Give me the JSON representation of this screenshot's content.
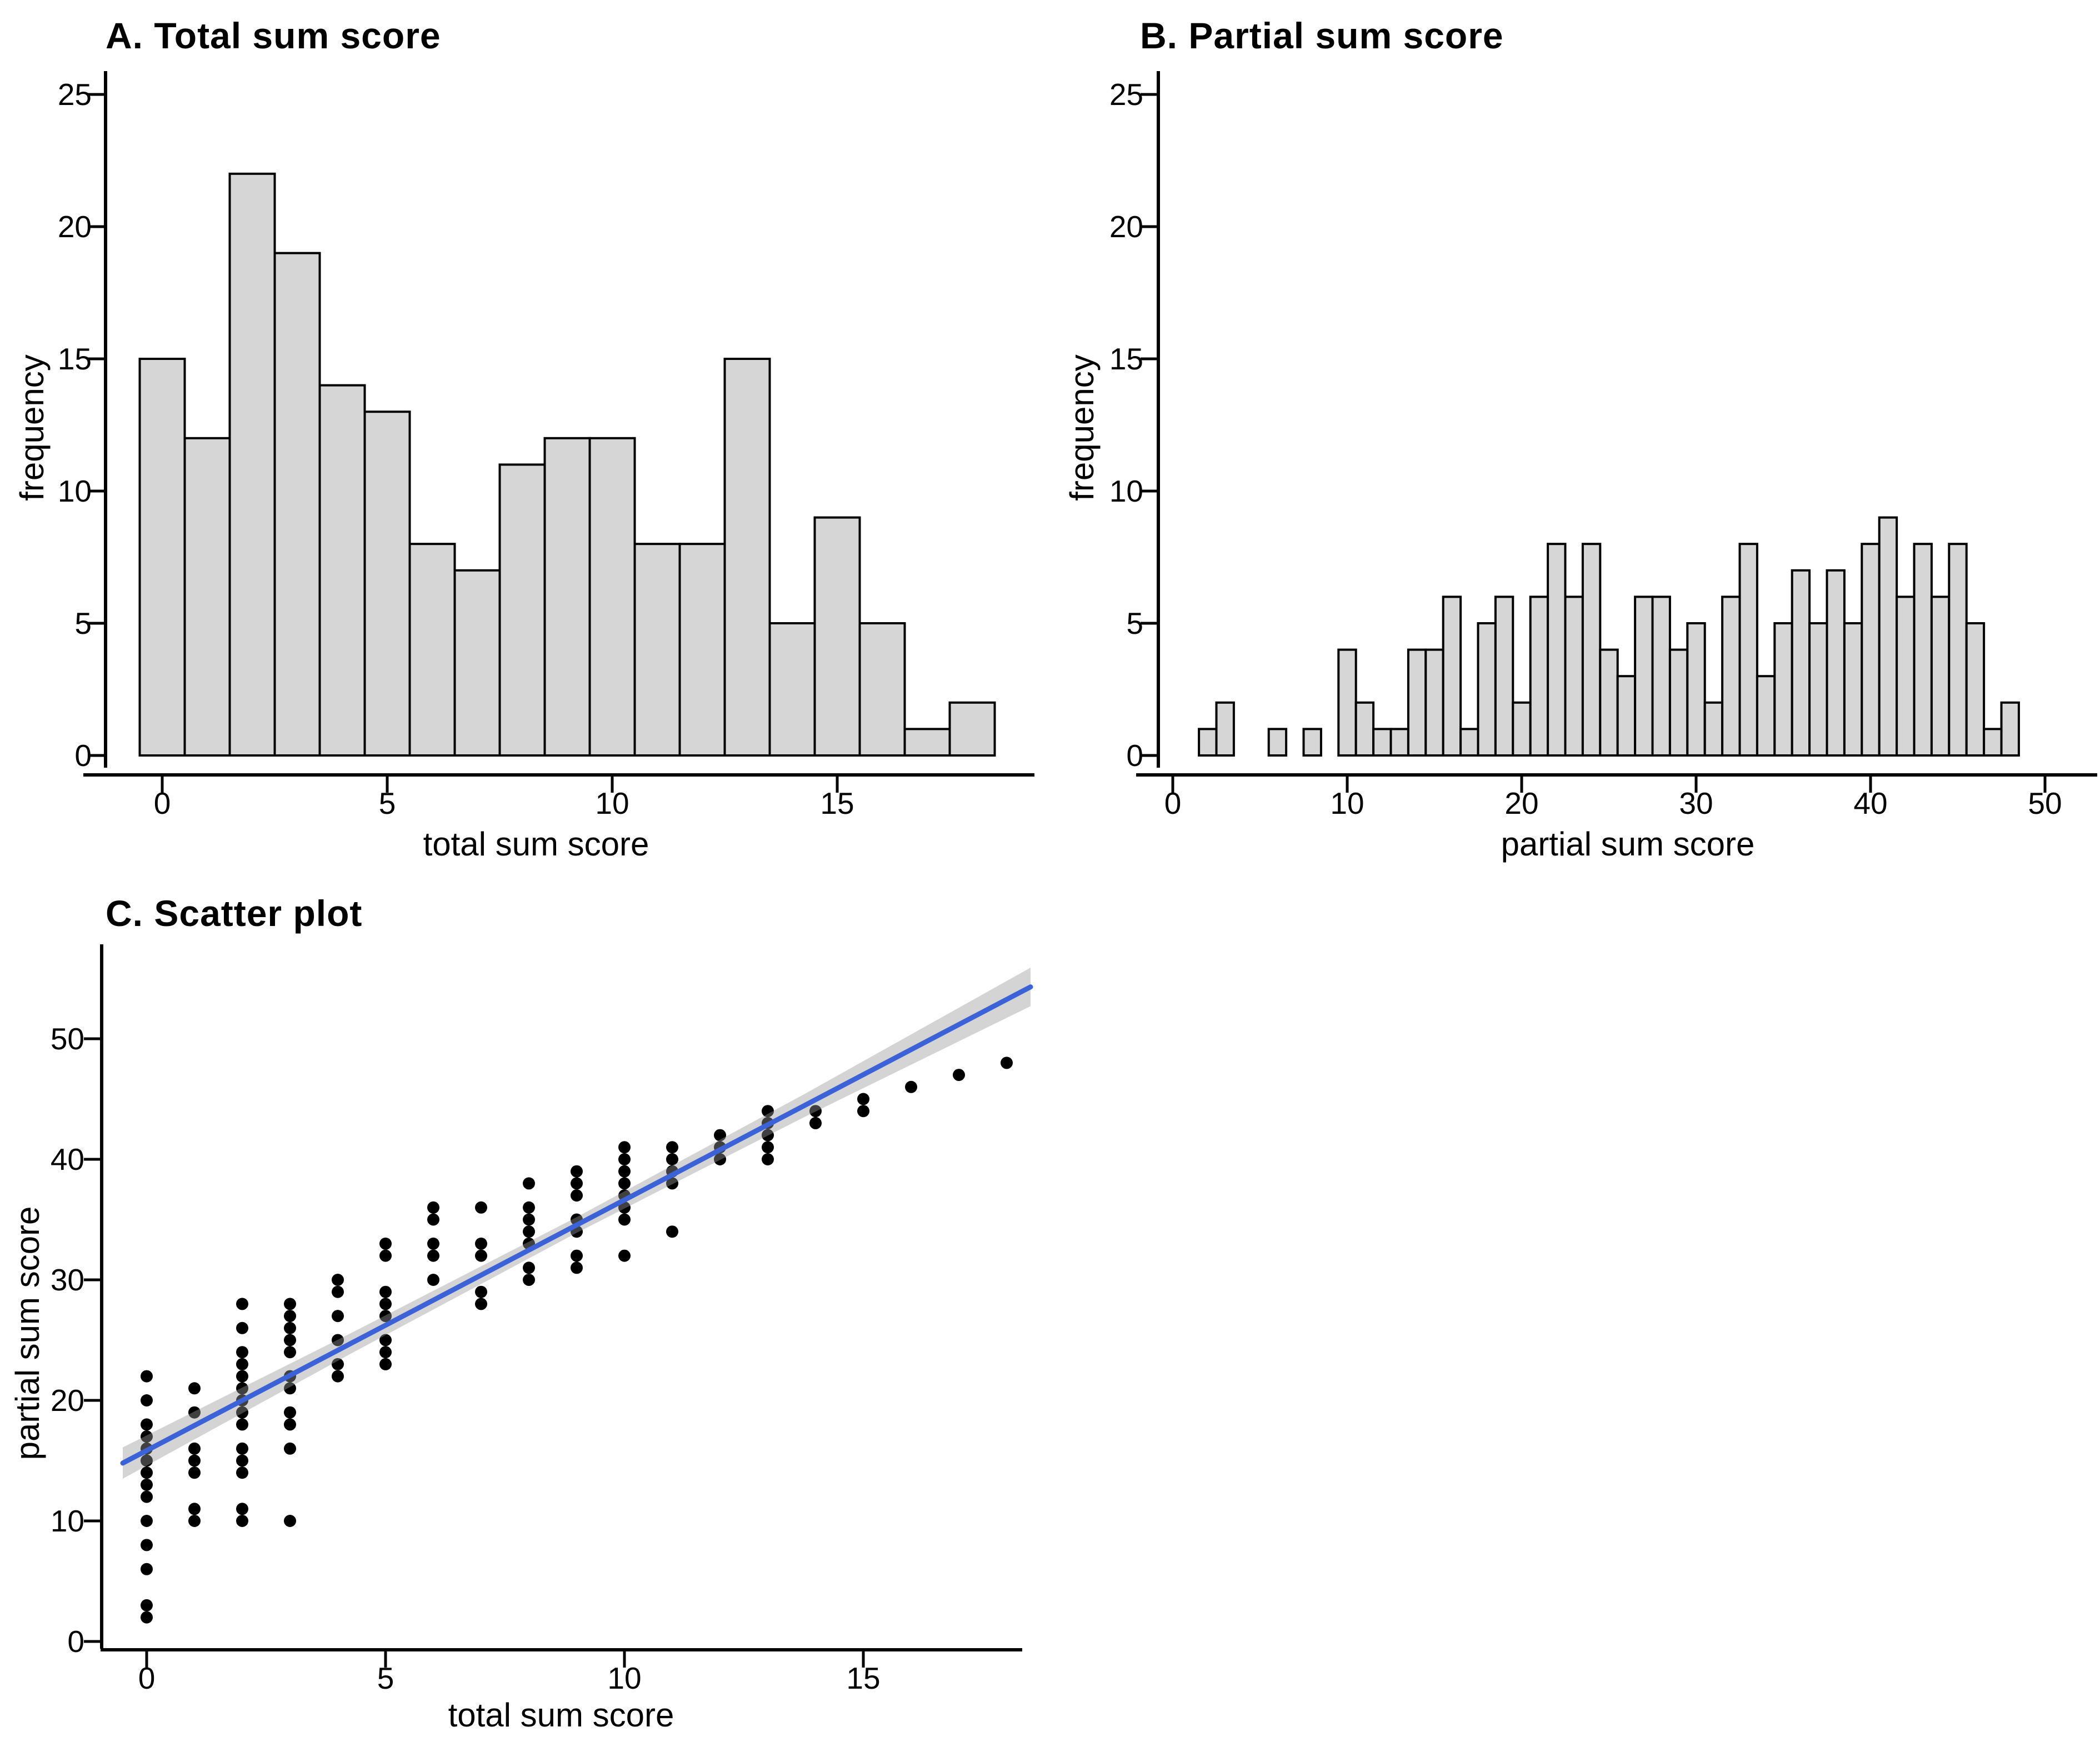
{
  "figure": {
    "background": "#ffffff",
    "text_color": "#000000"
  },
  "panels": [
    {
      "id": "A",
      "title": "A. Total sum score"
    },
    {
      "id": "B",
      "title": "B. Partial sum score"
    },
    {
      "id": "C",
      "title": "C. Scatter plot"
    }
  ],
  "chart_data": [
    {
      "type": "bar",
      "panel": "A",
      "title": "A. Total sum score",
      "xlabel": "total sum score",
      "ylabel": "frequency",
      "categories": [
        0,
        1,
        2,
        3,
        4,
        5,
        6,
        7,
        8,
        9,
        10,
        11,
        12,
        13,
        14,
        15,
        16,
        17,
        18
      ],
      "values": [
        15,
        12,
        22,
        19,
        14,
        13,
        8,
        7,
        11,
        12,
        12,
        8,
        8,
        15,
        5,
        9,
        5,
        1,
        2
      ],
      "xticks": [
        0,
        5,
        10,
        15
      ],
      "yticks": [
        0,
        5,
        10,
        15,
        20,
        25
      ],
      "xlim": [
        -0.6,
        18.6
      ],
      "ylim": [
        0,
        26
      ],
      "grid": false,
      "bar_fill": "#d6d6d6",
      "bar_stroke": "#000000"
    },
    {
      "type": "bar",
      "panel": "B",
      "title": "B. Partial sum score",
      "xlabel": "partial sum score",
      "ylabel": "frequency",
      "categories": [
        2,
        3,
        4,
        5,
        6,
        7,
        8,
        9,
        10,
        11,
        12,
        13,
        14,
        15,
        16,
        17,
        18,
        19,
        20,
        21,
        22,
        23,
        24,
        25,
        26,
        27,
        28,
        29,
        30,
        31,
        32,
        33,
        34,
        35,
        36,
        37,
        38,
        39,
        40,
        41,
        42,
        43,
        44,
        45,
        46,
        47,
        48
      ],
      "values": [
        1,
        2,
        0,
        0,
        1,
        0,
        1,
        0,
        4,
        2,
        1,
        1,
        4,
        4,
        6,
        1,
        5,
        6,
        2,
        6,
        8,
        6,
        8,
        4,
        3,
        6,
        6,
        4,
        5,
        2,
        6,
        8,
        3,
        5,
        7,
        5,
        7,
        5,
        8,
        9,
        6,
        8,
        6,
        8,
        5,
        1,
        2
      ],
      "xticks": [
        0,
        10,
        20,
        30,
        40,
        50
      ],
      "yticks": [
        0,
        5,
        10,
        15,
        20,
        25
      ],
      "xlim": [
        -1,
        50.5
      ],
      "ylim": [
        0,
        26
      ],
      "grid": false,
      "bar_fill": "#d6d6d6",
      "bar_stroke": "#000000"
    },
    {
      "type": "scatter",
      "panel": "C",
      "title": "C. Scatter plot",
      "xlabel": "total sum score",
      "ylabel": "partial sum score",
      "xticks": [
        0,
        5,
        10,
        15
      ],
      "yticks": [
        0,
        10,
        20,
        30,
        40,
        50
      ],
      "xlim": [
        -0.6,
        18.6
      ],
      "ylim": [
        0,
        57
      ],
      "grid": false,
      "point_color": "#000000",
      "point_radius": 11,
      "columns": [
        {
          "x": 0,
          "y": [
            2,
            3,
            6,
            8,
            10,
            12,
            13,
            14,
            15,
            16,
            17,
            18,
            20,
            22
          ]
        },
        {
          "x": 1,
          "y": [
            10,
            11,
            14,
            15,
            16,
            19,
            21
          ]
        },
        {
          "x": 2,
          "y": [
            10,
            11,
            14,
            15,
            16,
            18,
            19,
            20,
            21,
            22,
            23,
            24,
            26,
            28
          ]
        },
        {
          "x": 3,
          "y": [
            10,
            16,
            18,
            19,
            21,
            22,
            24,
            25,
            26,
            27,
            28
          ]
        },
        {
          "x": 4,
          "y": [
            22,
            23,
            25,
            27,
            29,
            30
          ]
        },
        {
          "x": 5,
          "y": [
            23,
            24,
            25,
            27,
            28,
            29,
            32,
            33
          ]
        },
        {
          "x": 6,
          "y": [
            30,
            32,
            33,
            35,
            36
          ]
        },
        {
          "x": 7,
          "y": [
            28,
            29,
            32,
            33,
            36
          ]
        },
        {
          "x": 8,
          "y": [
            30,
            31,
            33,
            34,
            35,
            36,
            38
          ]
        },
        {
          "x": 9,
          "y": [
            31,
            32,
            34,
            35,
            37,
            38,
            39
          ]
        },
        {
          "x": 10,
          "y": [
            32,
            35,
            36,
            37,
            38,
            39,
            40,
            41
          ]
        },
        {
          "x": 11,
          "y": [
            34,
            38,
            39,
            40,
            41
          ]
        },
        {
          "x": 12,
          "y": [
            40,
            41,
            42
          ]
        },
        {
          "x": 13,
          "y": [
            40,
            41,
            42,
            43,
            44
          ]
        },
        {
          "x": 14,
          "y": [
            43,
            44
          ]
        },
        {
          "x": 15,
          "y": [
            44,
            45
          ]
        },
        {
          "x": 16,
          "y": [
            46
          ]
        },
        {
          "x": 17,
          "y": [
            47
          ]
        },
        {
          "x": 18,
          "y": [
            48
          ]
        }
      ],
      "regression": {
        "x_start": -0.5,
        "y_start": 14.8,
        "x_end": 18.5,
        "y_end": 54.3,
        "line_color": "#3B62D6",
        "band_color": "#999999",
        "band_opacity": 0.42,
        "band_halfwidth_y": [
          1.3,
          0.85,
          0.65,
          0.95,
          1.6
        ]
      }
    }
  ]
}
